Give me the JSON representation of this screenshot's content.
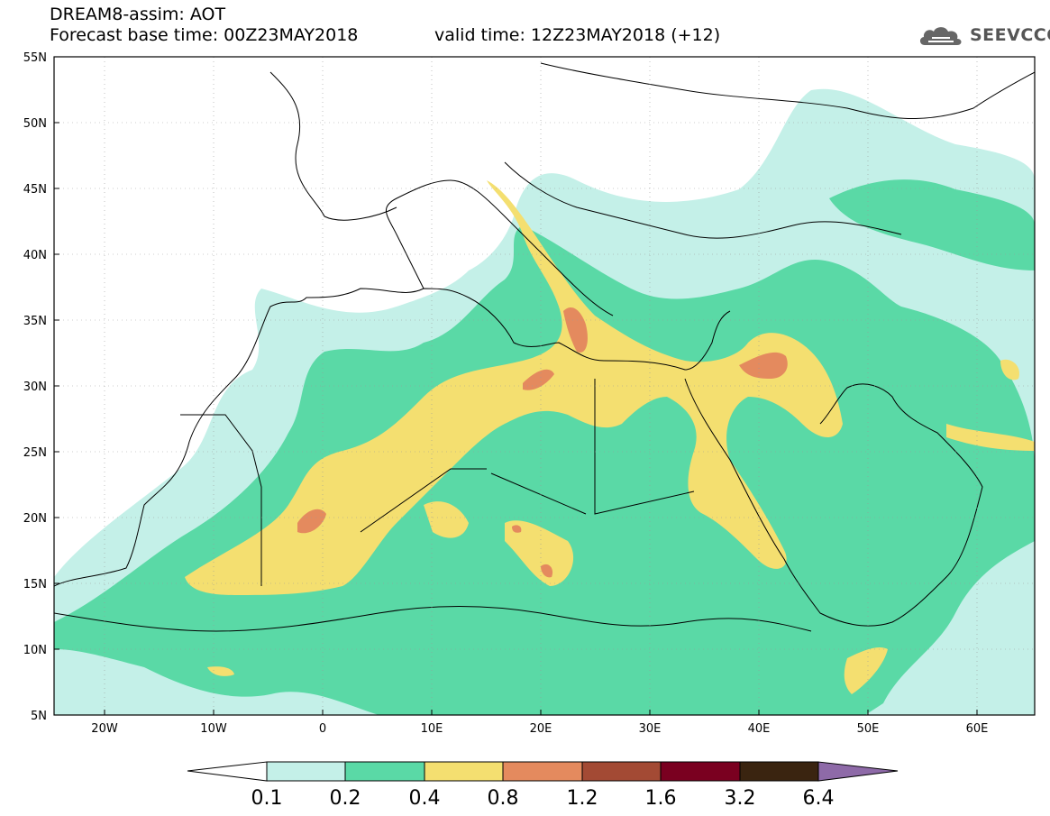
{
  "header": {
    "title": "DREAM8-assim: AOT",
    "forecast_base": "Forecast base time: 00Z23MAY2018",
    "valid_time": "valid time: 12Z23MAY2018 (+12)",
    "logo_text": "SEEVCCC"
  },
  "axes": {
    "lat_labels": [
      "55N",
      "50N",
      "45N",
      "40N",
      "35N",
      "30N",
      "25N",
      "20N",
      "15N",
      "10N",
      "5N"
    ],
    "lon_labels": [
      "20W",
      "10W",
      "0",
      "10E",
      "20E",
      "30E",
      "40E",
      "50E",
      "60E"
    ]
  },
  "colorbar": {
    "labels": [
      "0.1",
      "0.2",
      "0.4",
      "0.8",
      "1.2",
      "1.6",
      "3.2",
      "6.4"
    ],
    "colors": [
      "#ffffff",
      "#c4f0e8",
      "#5ad9a6",
      "#f4df70",
      "#e48a5e",
      "#a34a34",
      "#7a0020",
      "#3a2410",
      "#8e6aa8"
    ]
  },
  "map_colors": {
    "c01": "#c4f0e8",
    "c02": "#5ad9a6",
    "c04": "#f4df70",
    "c08": "#e48a5e"
  }
}
